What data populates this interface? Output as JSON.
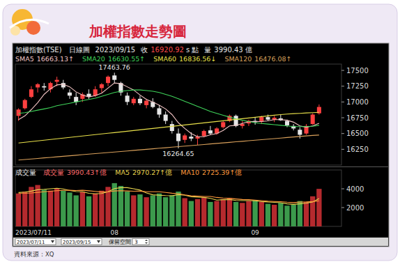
{
  "header": {
    "title": "加權指數走勢圖",
    "source": "資料來源：XQ"
  },
  "info_bar": {
    "period": "日線圖",
    "date": "2023/09/15",
    "close_label": "收",
    "close": 16920.92,
    "close_unit": "s 點",
    "volume_label": "量",
    "volume": 3990.43,
    "volume_unit": "億"
  },
  "toolbar": {
    "start": "2023/07/11",
    "end": "2023/09/15",
    "space_label": "保留空間",
    "space": 3
  },
  "chart_data": [
    {
      "type": "candlestick",
      "title": "加權指數(TSE)",
      "categories": [
        null,
        null,
        null,
        null,
        null,
        null,
        null,
        null,
        null,
        null,
        null,
        null,
        null,
        null,
        null,
        null,
        null,
        null,
        null,
        null,
        null,
        null,
        null,
        null,
        null,
        null,
        null,
        null,
        null,
        null,
        null,
        null,
        null,
        null,
        null,
        null,
        null,
        null,
        null,
        null,
        null,
        null,
        null,
        null,
        null,
        null,
        null,
        null
      ],
      "ylim": [
        16000,
        17600
      ],
      "yticks": [
        16250,
        16500,
        16750,
        17000,
        17250,
        17500
      ],
      "grid": false,
      "tick_labels": "y",
      "series": [
        {
          "type": "candlestick",
          "open": [
            16780,
            16900,
            17080,
            17230,
            17250,
            17200,
            17320,
            17300,
            17150,
            17080,
            17050,
            17130,
            17100,
            17220,
            17300,
            17420,
            17300,
            17100,
            16980,
            17050,
            16950,
            17000,
            16900,
            16800,
            16650,
            16500,
            16400,
            16450,
            16420,
            16460,
            16550,
            16500,
            16600,
            16700,
            16780,
            16620,
            16660,
            16700,
            16690,
            16760,
            16720,
            16740,
            16700,
            16620,
            16560,
            16500,
            16650,
            16820
          ],
          "high": [
            16900,
            17050,
            17250,
            17300,
            17300,
            17320,
            17400,
            17350,
            17200,
            17150,
            17150,
            17200,
            17250,
            17300,
            17420,
            17463.76,
            17320,
            17150,
            17080,
            17100,
            17050,
            17060,
            16950,
            16850,
            16700,
            16580,
            16500,
            16520,
            16480,
            16560,
            16620,
            16600,
            16700,
            16800,
            16800,
            16700,
            16720,
            16760,
            16780,
            16800,
            16780,
            16800,
            16720,
            16650,
            16600,
            16650,
            16820,
            16960
          ],
          "low": [
            16700,
            16880,
            17060,
            17150,
            17180,
            17150,
            17250,
            17200,
            17050,
            16950,
            17000,
            17050,
            17080,
            17150,
            17250,
            17300,
            17100,
            16950,
            16950,
            16950,
            16900,
            16900,
            16750,
            16650,
            16500,
            16264.65,
            16350,
            16380,
            16320,
            16440,
            16480,
            16480,
            16580,
            16680,
            16600,
            16580,
            16620,
            16640,
            16650,
            16700,
            16680,
            16700,
            16600,
            16550,
            16420,
            16480,
            16640,
            16800
          ],
          "close": [
            16880,
            17030,
            17200,
            17280,
            17230,
            17300,
            17350,
            17230,
            17100,
            17000,
            17120,
            17080,
            17200,
            17280,
            17400,
            17350,
            17150,
            17000,
            17050,
            16980,
            17020,
            16920,
            16800,
            16700,
            16540,
            16380,
            16470,
            16420,
            16450,
            16540,
            16500,
            16580,
            16680,
            16780,
            16620,
            16650,
            16700,
            16680,
            16760,
            16720,
            16750,
            16710,
            16630,
            16580,
            16480,
            16620,
            16800,
            16920.92
          ],
          "colors": [
            "#ff4040",
            "#ff4040",
            "#ff4040",
            "#ff4040",
            "#e6e6e6",
            "#ff4040",
            "#ff4040",
            "#e6e6e6",
            "#e6e6e6",
            "#e6e6e6",
            "#ff4040",
            "#e6e6e6",
            "#ff4040",
            "#ff4040",
            "#ff4040",
            "#e6e6e6",
            "#e6e6e6",
            "#e6e6e6",
            "#ff4040",
            "#e6e6e6",
            "#ff4040",
            "#e6e6e6",
            "#e6e6e6",
            "#e6e6e6",
            "#e6e6e6",
            "#e6e6e6",
            "#ff4040",
            "#e6e6e6",
            "#ff4040",
            "#ff4040",
            "#e6e6e6",
            "#ff4040",
            "#ff4040",
            "#ff4040",
            "#e6e6e6",
            "#ff4040",
            "#ff4040",
            "#e6e6e6",
            "#ff4040",
            "#e6e6e6",
            "#ff4040",
            "#e6e6e6",
            "#e6e6e6",
            "#e6e6e6",
            "#e6e6e6",
            "#ff4040",
            "#ff4040",
            "#ff4040"
          ]
        },
        {
          "name": "SMA5",
          "type": "line",
          "color": "#f2c4c4",
          "trend": "↑",
          "values": [
            16720,
            16780,
            16880,
            16990,
            17120,
            17210,
            17270,
            17280,
            17240,
            17160,
            17110,
            17080,
            17100,
            17140,
            17220,
            17300,
            17290,
            17240,
            17190,
            17110,
            17040,
            17000,
            16950,
            16890,
            16800,
            16670,
            16580,
            16500,
            16450,
            16450,
            16480,
            16500,
            16550,
            16620,
            16630,
            16660,
            16690,
            16690,
            16690,
            16700,
            16720,
            16720,
            16710,
            16680,
            16620,
            16600,
            16620,
            16663.13
          ]
        },
        {
          "name": "SMA20",
          "type": "line",
          "color": "#3fd45a",
          "trend": "↑",
          "values": [
            16820,
            16830,
            16850,
            16870,
            16890,
            16910,
            16940,
            16960,
            16980,
            17000,
            17020,
            17040,
            17060,
            17090,
            17120,
            17150,
            17170,
            17180,
            17190,
            17190,
            17180,
            17170,
            17150,
            17120,
            17090,
            17050,
            17010,
            16970,
            16930,
            16890,
            16850,
            16820,
            16790,
            16760,
            16730,
            16710,
            16690,
            16670,
            16660,
            16650,
            16640,
            16630,
            16620,
            16610,
            16610,
            16610,
            16615,
            16630.55
          ]
        },
        {
          "name": "SMA60",
          "type": "line",
          "color": "#e8e04a",
          "trend": "↓",
          "values": [
            16350,
            16361,
            16372,
            16383,
            16394,
            16405,
            16416,
            16427,
            16438,
            16449,
            16460,
            16471,
            16482,
            16493,
            16504,
            16515,
            16526,
            16537,
            16548,
            16559,
            16570,
            16581,
            16592,
            16603,
            16614,
            16625,
            16636,
            16647,
            16658,
            16669,
            16680,
            16691,
            16702,
            16713,
            16724,
            16735,
            16746,
            16757,
            16768,
            16779,
            16790,
            16800,
            16808,
            16815,
            16820,
            16826,
            16831,
            16836.56
          ]
        },
        {
          "name": "SMA120",
          "type": "line",
          "color": "#d9a05b",
          "trend": "↑",
          "values": [
            16080,
            16088,
            16097,
            16105,
            16114,
            16122,
            16131,
            16139,
            16148,
            16156,
            16165,
            16173,
            16182,
            16190,
            16199,
            16207,
            16216,
            16224,
            16233,
            16241,
            16250,
            16258,
            16267,
            16275,
            16284,
            16292,
            16301,
            16309,
            16318,
            16326,
            16335,
            16343,
            16352,
            16360,
            16369,
            16377,
            16386,
            16394,
            16403,
            16411,
            16420,
            16428,
            16437,
            16445,
            16454,
            16462,
            16470,
            16476.08
          ]
        }
      ]
    },
    {
      "type": "bar",
      "title": "成交量",
      "unit": "億",
      "categories": [
        "2023/07/11",
        null,
        null,
        null,
        null,
        null,
        null,
        null,
        null,
        null,
        null,
        null,
        null,
        null,
        null,
        "08",
        null,
        null,
        null,
        null,
        null,
        null,
        null,
        null,
        null,
        null,
        null,
        null,
        null,
        null,
        null,
        null,
        null,
        null,
        null,
        null,
        null,
        "09",
        null,
        null,
        null,
        null,
        null,
        null,
        null,
        null,
        null,
        null
      ],
      "ylim": [
        0,
        6000
      ],
      "yticks": [
        2000,
        4000
      ],
      "grid": false,
      "series": [
        {
          "name": "成交量",
          "type": "bar",
          "color": "#ff6b6b",
          "trend": "↑",
          "values": [
            3500,
            3700,
            4200,
            4400,
            3900,
            3800,
            4000,
            3800,
            3600,
            3300,
            3700,
            3200,
            3500,
            3800,
            4200,
            4600,
            4300,
            3700,
            3300,
            3400,
            3100,
            3300,
            3500,
            3100,
            3300,
            3700,
            3000,
            2700,
            2900,
            3100,
            2600,
            2700,
            2900,
            3000,
            2600,
            2500,
            2700,
            2800,
            2600,
            2400,
            2300,
            2500,
            2200,
            2300,
            2700,
            2600,
            3200,
            3990.43
          ],
          "colors": [
            "#b52a2e",
            "#b52a2e",
            "#b52a2e",
            "#b52a2e",
            "#3c9a4c",
            "#b52a2e",
            "#b52a2e",
            "#3c9a4c",
            "#3c9a4c",
            "#3c9a4c",
            "#b52a2e",
            "#3c9a4c",
            "#b52a2e",
            "#b52a2e",
            "#b52a2e",
            "#3c9a4c",
            "#3c9a4c",
            "#3c9a4c",
            "#b52a2e",
            "#3c9a4c",
            "#b52a2e",
            "#3c9a4c",
            "#3c9a4c",
            "#3c9a4c",
            "#3c9a4c",
            "#3c9a4c",
            "#b52a2e",
            "#3c9a4c",
            "#b52a2e",
            "#b52a2e",
            "#3c9a4c",
            "#b52a2e",
            "#b52a2e",
            "#b52a2e",
            "#3c9a4c",
            "#b52a2e",
            "#b52a2e",
            "#3c9a4c",
            "#b52a2e",
            "#3c9a4c",
            "#b52a2e",
            "#3c9a4c",
            "#3c9a4c",
            "#3c9a4c",
            "#3c9a4c",
            "#b52a2e",
            "#b52a2e",
            "#b52a2e"
          ]
        },
        {
          "name": "MA5",
          "type": "line",
          "color": "#e8d44d",
          "trend": "↑",
          "values": [
            3600,
            3650,
            3750,
            3900,
            3940,
            4000,
            4060,
            3980,
            3820,
            3700,
            3680,
            3520,
            3460,
            3500,
            3680,
            4020,
            4120,
            4120,
            4000,
            3860,
            3560,
            3360,
            3320,
            3280,
            3260,
            3380,
            3320,
            3160,
            3120,
            3080,
            2980,
            2800,
            2840,
            2860,
            2760,
            2740,
            2740,
            2720,
            2640,
            2600,
            2560,
            2520,
            2400,
            2340,
            2400,
            2460,
            2600,
            2970.27
          ]
        },
        {
          "name": "MA10",
          "type": "line",
          "color": "#ff9a3c",
          "trend": "↑",
          "values": [
            3500,
            3520,
            3560,
            3620,
            3680,
            3740,
            3800,
            3830,
            3840,
            3820,
            3840,
            3790,
            3720,
            3660,
            3690,
            3770,
            3800,
            3770,
            3740,
            3750,
            3690,
            3690,
            3680,
            3610,
            3530,
            3480,
            3350,
            3250,
            3210,
            3180,
            3180,
            3080,
            3020,
            2990,
            2920,
            2860,
            2840,
            2800,
            2740,
            2680,
            2650,
            2630,
            2570,
            2530,
            2580,
            2600,
            2640,
            2725.39
          ]
        }
      ]
    }
  ]
}
